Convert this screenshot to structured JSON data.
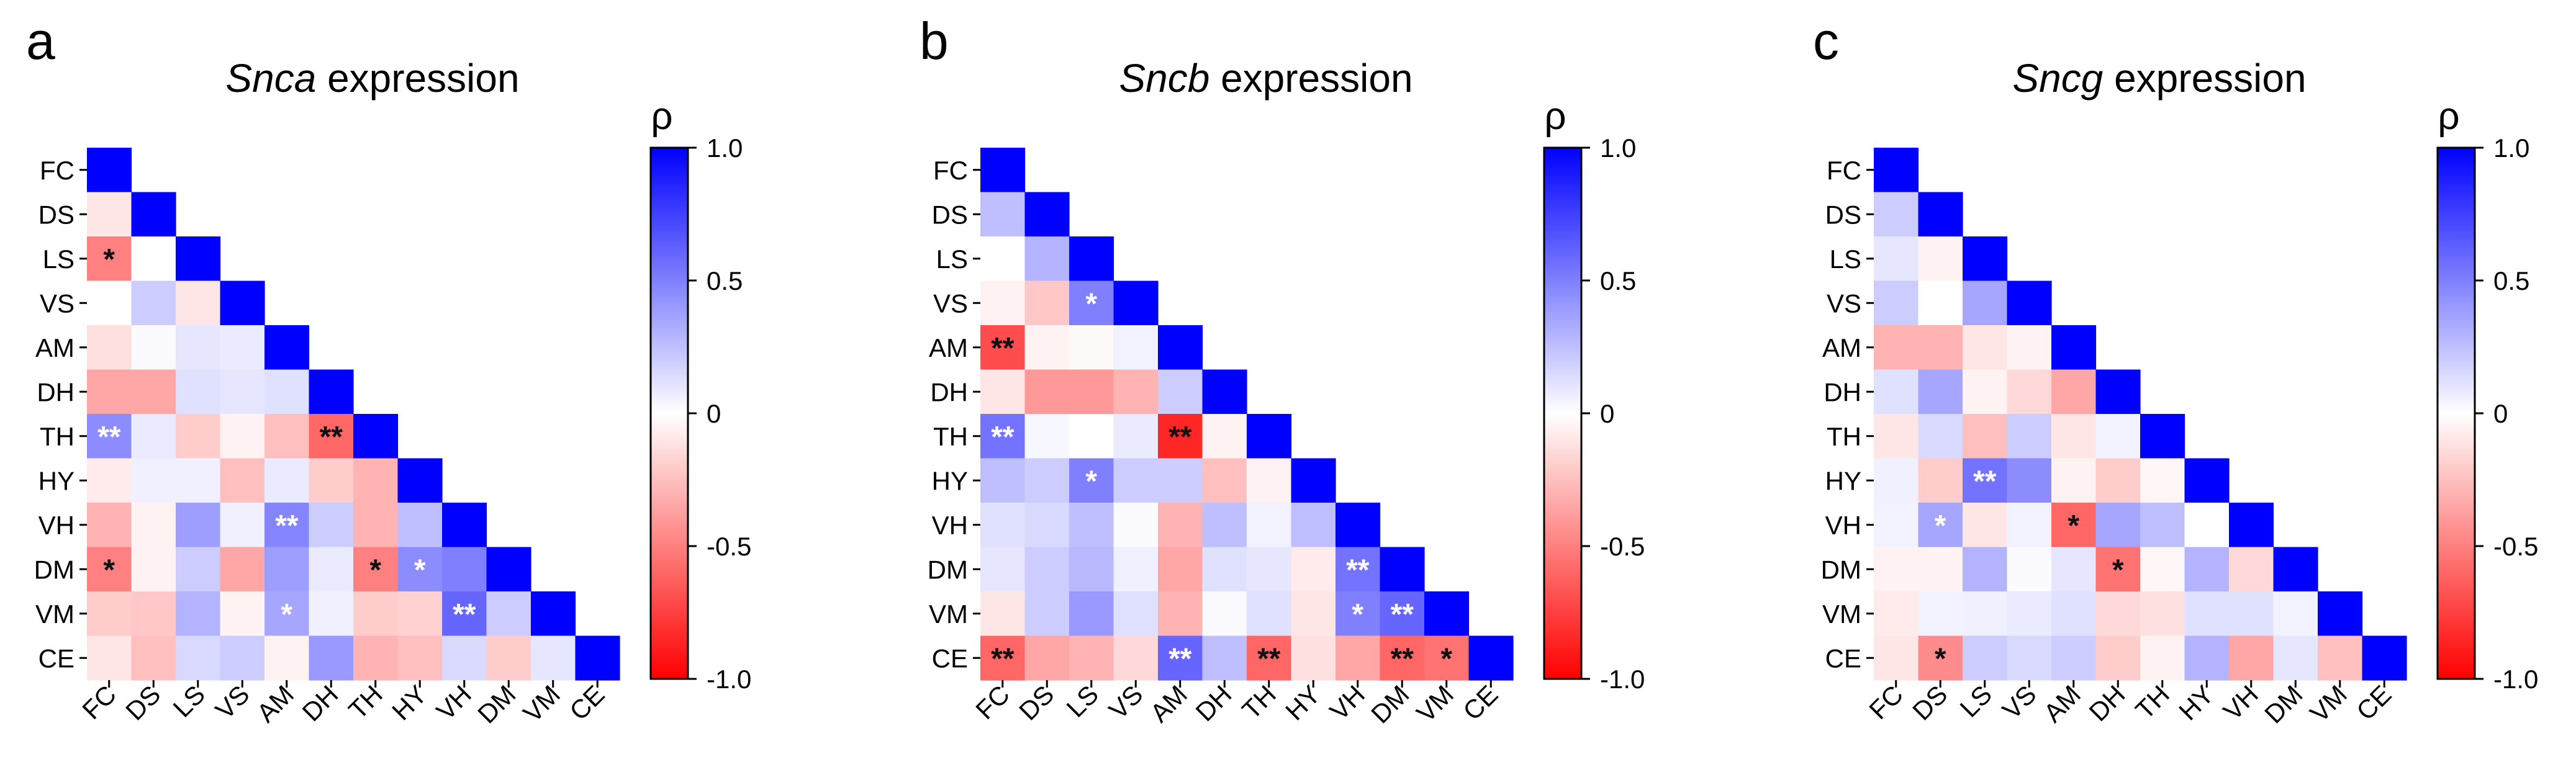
{
  "figure": {
    "colors": {
      "positive": "#0000ff",
      "zero": "#ffffff",
      "negative": "#ff0000"
    }
  },
  "chart_data": [
    {
      "type": "heatmap",
      "panel_label": "a",
      "title_italic": "Snca",
      "title_rest": " expression",
      "regions": [
        "FC",
        "DS",
        "LS",
        "VS",
        "AM",
        "DH",
        "TH",
        "HY",
        "VH",
        "DM",
        "VM",
        "CE"
      ],
      "colorbar": {
        "title": "ρ",
        "range": [
          -1.0,
          1.0
        ],
        "ticks": [
          "1.0",
          "0.5",
          "0",
          "-0.5",
          "-1.0"
        ]
      },
      "values": [
        [
          1.0
        ],
        [
          -0.1,
          1.0
        ],
        [
          -0.5,
          0.0,
          1.0
        ],
        [
          0.0,
          0.2,
          -0.1,
          1.0
        ],
        [
          -0.12,
          0.02,
          0.1,
          0.08,
          1.0
        ],
        [
          -0.35,
          -0.35,
          0.12,
          0.1,
          0.12,
          1.0
        ],
        [
          0.45,
          0.08,
          -0.2,
          -0.05,
          -0.25,
          -0.6,
          1.0
        ],
        [
          -0.08,
          0.06,
          0.06,
          -0.25,
          0.08,
          -0.2,
          -0.3,
          1.0
        ],
        [
          -0.3,
          -0.05,
          0.38,
          0.06,
          0.48,
          0.2,
          -0.3,
          0.25,
          1.0
        ],
        [
          -0.5,
          -0.05,
          0.2,
          -0.35,
          0.38,
          0.08,
          -0.5,
          0.45,
          0.5,
          1.0
        ],
        [
          -0.2,
          -0.22,
          0.3,
          -0.05,
          0.35,
          0.06,
          -0.2,
          -0.18,
          0.6,
          0.2,
          1.0
        ],
        [
          -0.1,
          -0.25,
          0.15,
          0.2,
          -0.05,
          0.4,
          -0.3,
          -0.25,
          0.15,
          -0.2,
          0.1,
          1.0
        ]
      ],
      "stars": [
        {
          "row": 2,
          "col": 0,
          "text": "*"
        },
        {
          "row": 6,
          "col": 0,
          "text": "**"
        },
        {
          "row": 6,
          "col": 5,
          "text": "**"
        },
        {
          "row": 8,
          "col": 4,
          "text": "**"
        },
        {
          "row": 9,
          "col": 0,
          "text": "*"
        },
        {
          "row": 9,
          "col": 6,
          "text": "*"
        },
        {
          "row": 9,
          "col": 7,
          "text": "*"
        },
        {
          "row": 10,
          "col": 4,
          "text": "*"
        },
        {
          "row": 10,
          "col": 8,
          "text": "**"
        }
      ]
    },
    {
      "type": "heatmap",
      "panel_label": "b",
      "title_italic": "Sncb",
      "title_rest": " expression",
      "regions": [
        "FC",
        "DS",
        "LS",
        "VS",
        "AM",
        "DH",
        "TH",
        "HY",
        "VH",
        "DM",
        "VM",
        "CE"
      ],
      "colorbar": {
        "title": "ρ",
        "range": [
          -1.0,
          1.0
        ],
        "ticks": [
          "1.0",
          "0.5",
          "0",
          "-0.5",
          "-1.0"
        ]
      },
      "values": [
        [
          1.0
        ],
        [
          0.25,
          1.0
        ],
        [
          0.0,
          0.3,
          1.0
        ],
        [
          -0.05,
          -0.22,
          0.5,
          1.0
        ],
        [
          -0.7,
          -0.05,
          -0.02,
          0.05,
          1.0
        ],
        [
          -0.1,
          -0.4,
          -0.4,
          -0.3,
          0.2,
          1.0
        ],
        [
          0.55,
          0.03,
          0.0,
          0.08,
          -0.85,
          -0.05,
          1.0
        ],
        [
          0.25,
          0.2,
          0.5,
          0.2,
          0.2,
          -0.25,
          -0.05,
          1.0
        ],
        [
          0.12,
          0.15,
          0.25,
          0.02,
          -0.3,
          0.25,
          0.05,
          0.25,
          1.0
        ],
        [
          0.1,
          0.2,
          0.28,
          0.06,
          -0.35,
          0.12,
          0.1,
          -0.08,
          0.55,
          1.0
        ],
        [
          -0.1,
          0.2,
          0.4,
          0.12,
          -0.3,
          0.02,
          0.12,
          -0.1,
          0.5,
          0.6,
          1.0
        ],
        [
          -0.6,
          -0.35,
          -0.3,
          -0.15,
          0.6,
          0.25,
          -0.6,
          -0.12,
          -0.35,
          -0.6,
          -0.55,
          1.0
        ]
      ],
      "stars": [
        {
          "row": 3,
          "col": 2,
          "text": "*"
        },
        {
          "row": 4,
          "col": 0,
          "text": "**"
        },
        {
          "row": 6,
          "col": 0,
          "text": "**"
        },
        {
          "row": 6,
          "col": 4,
          "text": "**"
        },
        {
          "row": 7,
          "col": 2,
          "text": "*"
        },
        {
          "row": 9,
          "col": 8,
          "text": "**"
        },
        {
          "row": 10,
          "col": 8,
          "text": "*"
        },
        {
          "row": 10,
          "col": 9,
          "text": "**"
        },
        {
          "row": 11,
          "col": 0,
          "text": "**"
        },
        {
          "row": 11,
          "col": 4,
          "text": "**"
        },
        {
          "row": 11,
          "col": 6,
          "text": "**"
        },
        {
          "row": 11,
          "col": 9,
          "text": "**"
        },
        {
          "row": 11,
          "col": 10,
          "text": "*"
        }
      ]
    },
    {
      "type": "heatmap",
      "panel_label": "c",
      "title_italic": "Sncg",
      "title_rest": " expression",
      "regions": [
        "FC",
        "DS",
        "LS",
        "VS",
        "AM",
        "DH",
        "TH",
        "HY",
        "VH",
        "DM",
        "VM",
        "CE"
      ],
      "colorbar": {
        "title": "ρ",
        "range": [
          -1.0,
          1.0
        ],
        "ticks": [
          "1.0",
          "0.5",
          "0",
          "-0.5",
          "-1.0"
        ]
      },
      "values": [
        [
          1.0
        ],
        [
          0.2,
          1.0
        ],
        [
          0.1,
          -0.05,
          1.0
        ],
        [
          0.2,
          0.0,
          0.35,
          1.0
        ],
        [
          -0.3,
          -0.3,
          -0.1,
          -0.05,
          1.0
        ],
        [
          0.12,
          0.35,
          -0.05,
          -0.15,
          -0.35,
          1.0
        ],
        [
          -0.1,
          0.15,
          -0.25,
          0.2,
          -0.1,
          0.05,
          1.0
        ],
        [
          0.06,
          -0.2,
          0.55,
          0.45,
          -0.05,
          -0.2,
          -0.03,
          1.0
        ],
        [
          0.05,
          0.35,
          -0.1,
          0.05,
          -0.6,
          0.35,
          0.25,
          0.0,
          1.0
        ],
        [
          -0.05,
          -0.05,
          0.3,
          0.02,
          0.1,
          -0.55,
          -0.03,
          0.3,
          -0.15,
          1.0
        ],
        [
          -0.08,
          0.05,
          0.06,
          0.08,
          0.12,
          -0.15,
          -0.12,
          0.12,
          0.12,
          0.05,
          1.0
        ],
        [
          -0.1,
          -0.45,
          0.2,
          0.15,
          0.2,
          -0.2,
          -0.05,
          0.3,
          -0.35,
          0.1,
          -0.25,
          1.0
        ]
      ],
      "stars": [
        {
          "row": 7,
          "col": 2,
          "text": "**"
        },
        {
          "row": 8,
          "col": 1,
          "text": "*"
        },
        {
          "row": 8,
          "col": 4,
          "text": "*"
        },
        {
          "row": 9,
          "col": 5,
          "text": "*"
        },
        {
          "row": 11,
          "col": 1,
          "text": "*"
        }
      ]
    }
  ]
}
